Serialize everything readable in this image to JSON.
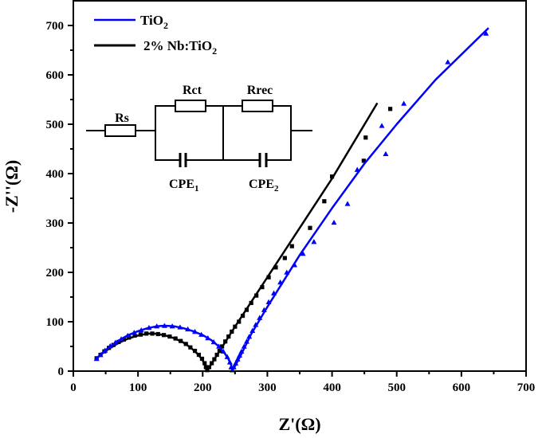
{
  "chart_data": {
    "type": "scatter",
    "xlabel": "Z'(Ω)",
    "ylabel": "-Z''(Ω)",
    "xlim": [
      0,
      700
    ],
    "ylim": [
      0,
      750
    ],
    "xticks": [
      0,
      100,
      200,
      300,
      400,
      500,
      600,
      700
    ],
    "yticks": [
      0,
      100,
      200,
      300,
      400,
      500,
      600,
      700
    ],
    "grid": false,
    "legend_placement": "top-left",
    "series": [
      {
        "name": "TiO",
        "name_sub": "2",
        "color": "#0000ff",
        "marker": "triangle",
        "points": [
          [
            36,
            25
          ],
          [
            42,
            33
          ],
          [
            49,
            42
          ],
          [
            57,
            51
          ],
          [
            65,
            58
          ],
          [
            74,
            65
          ],
          [
            84,
            72
          ],
          [
            94,
            78
          ],
          [
            105,
            83
          ],
          [
            117,
            88
          ],
          [
            129,
            91
          ],
          [
            141,
            92
          ],
          [
            153,
            91
          ],
          [
            165,
            89
          ],
          [
            177,
            85
          ],
          [
            188,
            80
          ],
          [
            198,
            74
          ],
          [
            208,
            67
          ],
          [
            217,
            59
          ],
          [
            225,
            50
          ],
          [
            232,
            40
          ],
          [
            238,
            29
          ],
          [
            242,
            18
          ],
          [
            244,
            8
          ],
          [
            246,
            2
          ],
          [
            248,
            8
          ],
          [
            251,
            16
          ],
          [
            254,
            24
          ],
          [
            257,
            32
          ],
          [
            260,
            40
          ],
          [
            264,
            50
          ],
          [
            268,
            60
          ],
          [
            272,
            70
          ],
          [
            277,
            82
          ],
          [
            282,
            94
          ],
          [
            288,
            108
          ],
          [
            295,
            124
          ],
          [
            302,
            140
          ],
          [
            310,
            158
          ],
          [
            320,
            180
          ],
          [
            330,
            200
          ],
          [
            342,
            215
          ],
          [
            355,
            238
          ],
          [
            372,
            262
          ],
          [
            403,
            301
          ],
          [
            424,
            339
          ],
          [
            439,
            408
          ],
          [
            483,
            440
          ],
          [
            477,
            497
          ],
          [
            511,
            542
          ],
          [
            579,
            626
          ],
          [
            638,
            684
          ]
        ],
        "fit": [
          [
            35,
            24
          ],
          [
            45,
            37
          ],
          [
            57,
            50
          ],
          [
            70,
            62
          ],
          [
            85,
            73
          ],
          [
            100,
            81
          ],
          [
            115,
            87
          ],
          [
            130,
            91
          ],
          [
            141,
            92
          ],
          [
            155,
            91
          ],
          [
            170,
            87
          ],
          [
            185,
            81
          ],
          [
            200,
            73
          ],
          [
            213,
            63
          ],
          [
            225,
            50
          ],
          [
            234,
            36
          ],
          [
            240,
            24
          ],
          [
            244,
            12
          ],
          [
            246,
            2
          ],
          [
            250,
            10
          ],
          [
            260,
            35
          ],
          [
            275,
            75
          ],
          [
            300,
            130
          ],
          [
            350,
            235
          ],
          [
            400,
            330
          ],
          [
            450,
            420
          ],
          [
            500,
            500
          ],
          [
            560,
            590
          ],
          [
            642,
            695
          ]
        ]
      },
      {
        "name": "2% Nb:TiO",
        "name_sub": "2",
        "color": "#000000",
        "marker": "square",
        "points": [
          [
            36,
            26
          ],
          [
            42,
            33
          ],
          [
            48,
            40
          ],
          [
            55,
            47
          ],
          [
            62,
            53
          ],
          [
            70,
            59
          ],
          [
            78,
            64
          ],
          [
            86,
            68
          ],
          [
            95,
            72
          ],
          [
            104,
            74
          ],
          [
            113,
            76
          ],
          [
            122,
            76
          ],
          [
            131,
            75
          ],
          [
            140,
            73
          ],
          [
            149,
            70
          ],
          [
            158,
            66
          ],
          [
            166,
            61
          ],
          [
            174,
            55
          ],
          [
            181,
            48
          ],
          [
            188,
            41
          ],
          [
            194,
            33
          ],
          [
            199,
            25
          ],
          [
            203,
            16
          ],
          [
            205,
            8
          ],
          [
            207,
            2
          ],
          [
            210,
            8
          ],
          [
            214,
            16
          ],
          [
            218,
            24
          ],
          [
            222,
            33
          ],
          [
            226,
            41
          ],
          [
            230,
            50
          ],
          [
            235,
            60
          ],
          [
            240,
            70
          ],
          [
            245,
            80
          ],
          [
            250,
            90
          ],
          [
            256,
            100
          ],
          [
            262,
            112
          ],
          [
            268,
            124
          ],
          [
            275,
            138
          ],
          [
            283,
            153
          ],
          [
            292,
            170
          ],
          [
            302,
            190
          ],
          [
            313,
            210
          ],
          [
            327,
            229
          ],
          [
            338,
            253
          ],
          [
            366,
            290
          ],
          [
            388,
            344
          ],
          [
            400,
            394
          ],
          [
            449,
            426
          ],
          [
            452,
            473
          ],
          [
            490,
            531
          ]
        ],
        "fit": [
          [
            35,
            25
          ],
          [
            45,
            36
          ],
          [
            57,
            47
          ],
          [
            70,
            57
          ],
          [
            85,
            66
          ],
          [
            100,
            72
          ],
          [
            115,
            76
          ],
          [
            125,
            76
          ],
          [
            140,
            73
          ],
          [
            155,
            67
          ],
          [
            170,
            58
          ],
          [
            182,
            47
          ],
          [
            192,
            35
          ],
          [
            199,
            24
          ],
          [
            204,
            12
          ],
          [
            207,
            1
          ],
          [
            210,
            7
          ],
          [
            220,
            28
          ],
          [
            250,
            90
          ],
          [
            300,
            190
          ],
          [
            350,
            290
          ],
          [
            400,
            390
          ],
          [
            470,
            543
          ]
        ]
      }
    ],
    "inset_circuit": {
      "resistors": [
        "Rs",
        "Rct",
        "Rrec"
      ],
      "capacitors": [
        {
          "label": "CPE",
          "sub": "1"
        },
        {
          "label": "CPE",
          "sub": "2"
        }
      ]
    }
  }
}
